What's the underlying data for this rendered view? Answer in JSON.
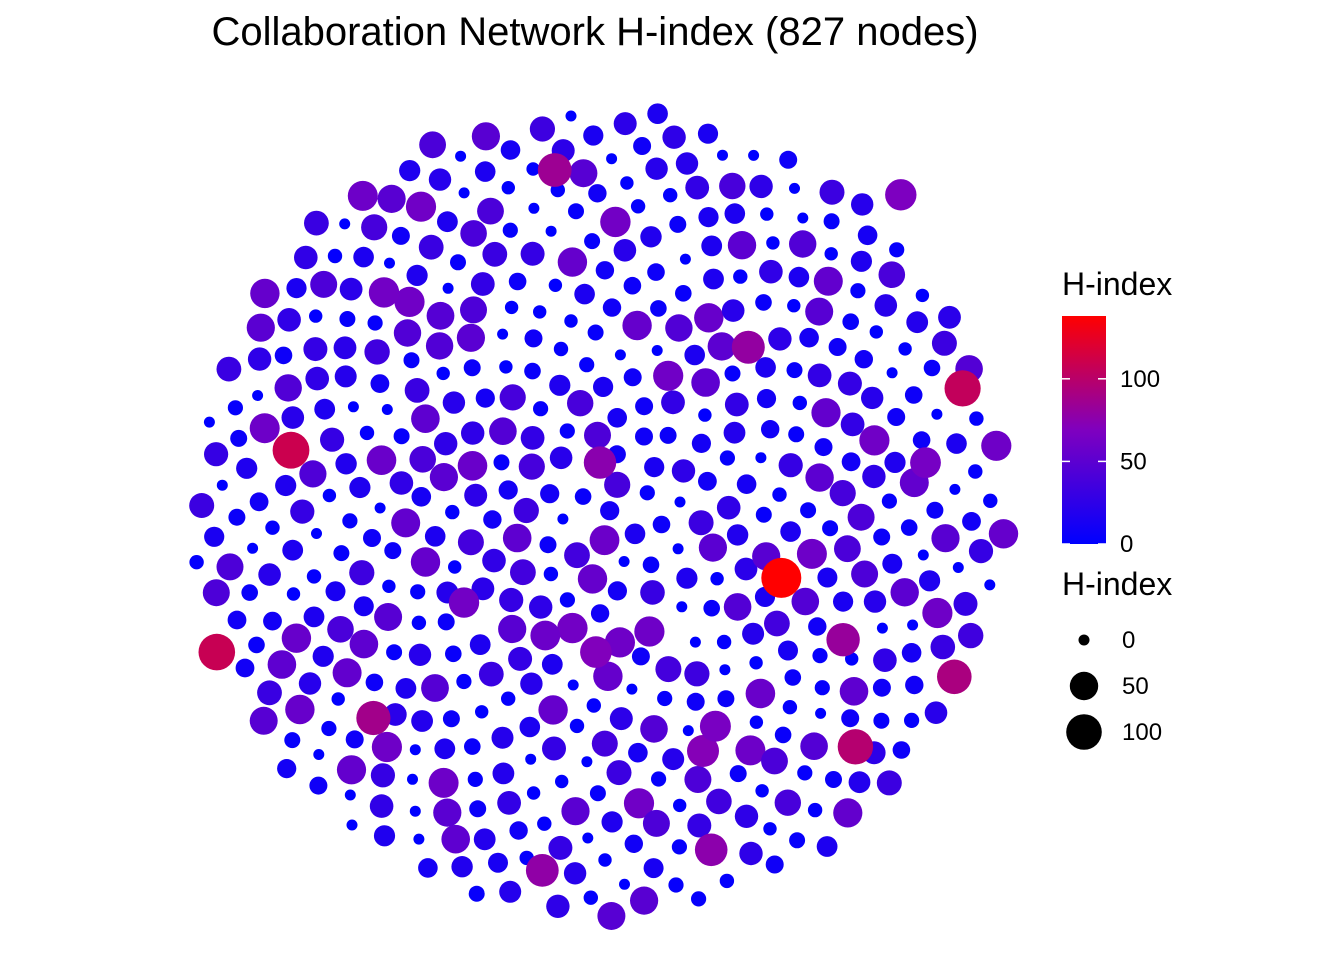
{
  "chart_data": {
    "type": "scatter",
    "subtype": "network-node-layout",
    "title": "Collaboration Network H-index (827 nodes)",
    "xlabel": "",
    "ylabel": "",
    "grid": false,
    "node_count": 827,
    "color_scale": {
      "title": "H-index",
      "low_color": "#0000ff",
      "mid_color": "#7f00bf",
      "high_color": "#ff0000",
      "domain": [
        0,
        138
      ],
      "ticks": [
        0,
        50,
        100
      ],
      "tick_labels": [
        "0",
        "50",
        "100"
      ]
    },
    "size_scale": {
      "title": "H-index",
      "breaks": [
        0,
        50,
        100
      ],
      "labels": [
        "0",
        "50",
        "100"
      ]
    },
    "legend_position": "right",
    "highlighted_nodes": [
      {
        "x": 0.44,
        "y": -0.16,
        "h": 138
      },
      {
        "x": -0.75,
        "y": 0.15,
        "h": 110
      },
      {
        "x": -0.93,
        "y": -0.34,
        "h": 108
      },
      {
        "x": 0.88,
        "y": 0.3,
        "h": 105
      },
      {
        "x": 0.62,
        "y": -0.57,
        "h": 98
      },
      {
        "x": 0.86,
        "y": -0.4,
        "h": 92
      },
      {
        "x": -0.55,
        "y": -0.5,
        "h": 88
      },
      {
        "x": -0.11,
        "y": 0.83,
        "h": 85
      },
      {
        "x": 0.59,
        "y": -0.31,
        "h": 82
      },
      {
        "x": 0.36,
        "y": 0.4,
        "h": 80
      },
      {
        "x": -0.14,
        "y": -0.87,
        "h": 78
      },
      {
        "x": 0.27,
        "y": -0.82,
        "h": 76
      },
      {
        "x": 0.0,
        "y": 0.12,
        "h": 75
      },
      {
        "x": 0.25,
        "y": -0.58,
        "h": 72
      },
      {
        "x": -0.01,
        "y": -0.34,
        "h": 70
      },
      {
        "x": 0.73,
        "y": 0.77,
        "h": 68
      },
      {
        "x": 0.28,
        "y": -0.52,
        "h": 66
      },
      {
        "x": 0.79,
        "y": 0.12,
        "h": 64
      },
      {
        "x": -0.33,
        "y": -0.22,
        "h": 62
      },
      {
        "x": 0.12,
        "y": -0.29,
        "h": 60
      }
    ]
  }
}
